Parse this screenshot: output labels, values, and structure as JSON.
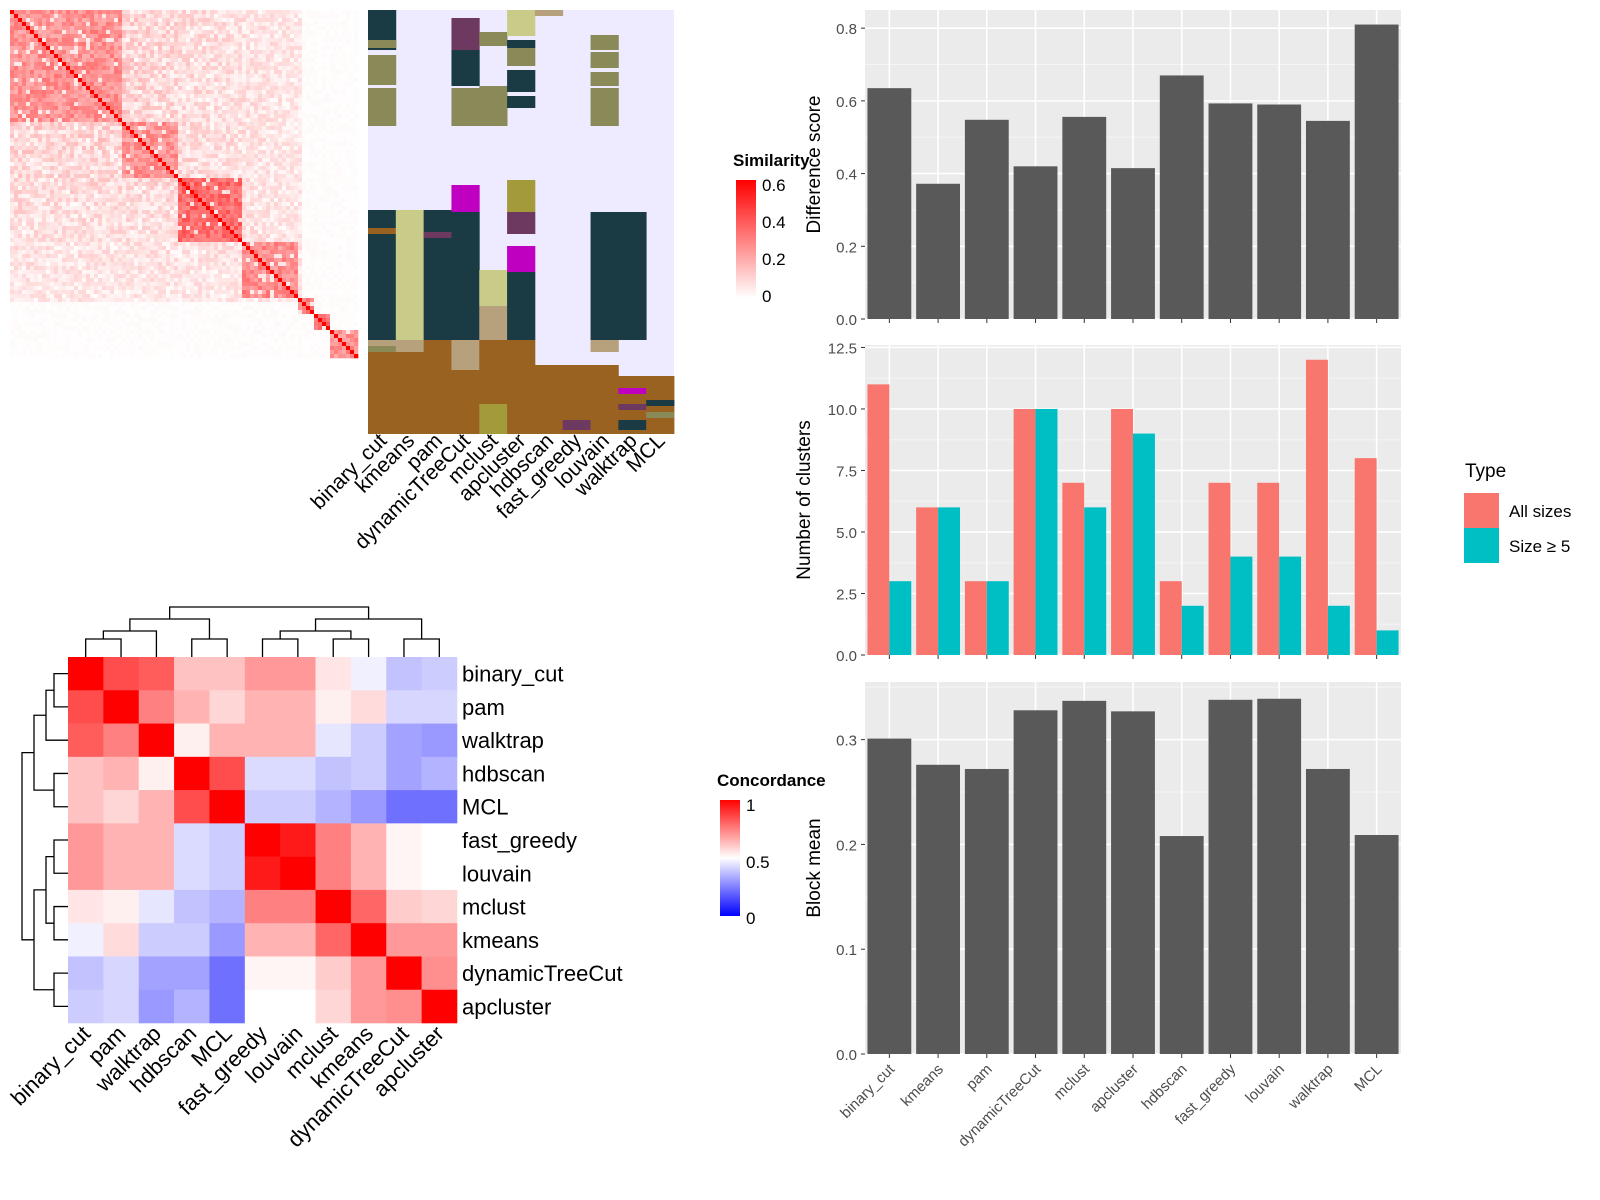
{
  "methods": [
    "binary_cut",
    "kmeans",
    "pam",
    "dynamicTreeCut",
    "mclust",
    "apcluster",
    "hdbscan",
    "fast_greedy",
    "louvain",
    "walktrap",
    "MCL"
  ],
  "colors": {
    "similarity_high": "#ff0000",
    "similarity_low": "#ffffff",
    "concordance_high": "#ff0000",
    "concordance_mid": "#ffffff",
    "concordance_low": "#0000ff",
    "bar_fill": "#595959",
    "panel_bg": "#ebebeb",
    "grid": "#ffffff",
    "all_sizes": "#f8766d",
    "size_ge5": "#00bfc4"
  },
  "similarity_legend": {
    "title": "Similarity",
    "ticks": [
      "0.6",
      "0.4",
      "0.2",
      "0"
    ]
  },
  "concordance_legend": {
    "title": "Concordance",
    "ticks": [
      "1",
      "0.5",
      "0"
    ]
  },
  "chart_data": [
    {
      "type": "heatmap",
      "title": "",
      "description_name": "similarity-matrix",
      "note": "term-by-term similarity heatmap with cluster assignment annotation columns",
      "columns": [
        "binary_cut",
        "kmeans",
        "pam",
        "dynamicTreeCut",
        "mclust",
        "apcluster",
        "hdbscan",
        "fast_greedy",
        "louvain",
        "walktrap",
        "MCL"
      ],
      "legend_title": "Similarity",
      "value_range": [
        0,
        0.6
      ]
    },
    {
      "type": "heatmap",
      "title": "",
      "rows": [
        "binary_cut",
        "pam",
        "walktrap",
        "hdbscan",
        "MCL",
        "fast_greedy",
        "louvain",
        "mclust",
        "kmeans",
        "dynamicTreeCut",
        "apcluster"
      ],
      "cols": [
        "binary_cut",
        "pam",
        "walktrap",
        "hdbscan",
        "MCL",
        "fast_greedy",
        "louvain",
        "mclust",
        "kmeans",
        "dynamicTreeCut",
        "apcluster"
      ],
      "legend_title": "Concordance",
      "value_range": [
        0,
        1
      ],
      "values": [
        [
          1.0,
          0.85,
          0.82,
          0.62,
          0.62,
          0.7,
          0.7,
          0.55,
          0.47,
          0.38,
          0.4
        ],
        [
          0.85,
          1.0,
          0.75,
          0.65,
          0.58,
          0.65,
          0.65,
          0.53,
          0.57,
          0.42,
          0.42
        ],
        [
          0.82,
          0.75,
          1.0,
          0.53,
          0.65,
          0.65,
          0.65,
          0.45,
          0.4,
          0.32,
          0.3
        ],
        [
          0.62,
          0.65,
          0.53,
          1.0,
          0.85,
          0.43,
          0.43,
          0.38,
          0.4,
          0.32,
          0.35
        ],
        [
          0.62,
          0.58,
          0.65,
          0.85,
          1.0,
          0.4,
          0.4,
          0.35,
          0.3,
          0.22,
          0.22
        ],
        [
          0.7,
          0.65,
          0.65,
          0.43,
          0.4,
          1.0,
          0.95,
          0.75,
          0.65,
          0.52,
          0.5
        ],
        [
          0.7,
          0.65,
          0.65,
          0.43,
          0.4,
          0.95,
          1.0,
          0.75,
          0.65,
          0.52,
          0.5
        ],
        [
          0.55,
          0.53,
          0.45,
          0.38,
          0.35,
          0.75,
          0.75,
          1.0,
          0.8,
          0.6,
          0.58
        ],
        [
          0.47,
          0.57,
          0.4,
          0.4,
          0.3,
          0.65,
          0.65,
          0.8,
          1.0,
          0.7,
          0.7
        ],
        [
          0.38,
          0.42,
          0.32,
          0.32,
          0.22,
          0.52,
          0.52,
          0.6,
          0.7,
          1.0,
          0.72
        ],
        [
          0.4,
          0.42,
          0.3,
          0.35,
          0.22,
          0.5,
          0.5,
          0.58,
          0.7,
          0.72,
          1.0
        ]
      ]
    },
    {
      "type": "bar",
      "title": "",
      "categories": [
        "binary_cut",
        "kmeans",
        "pam",
        "dynamicTreeCut",
        "mclust",
        "apcluster",
        "hdbscan",
        "fast_greedy",
        "louvain",
        "walktrap",
        "MCL"
      ],
      "values": [
        0.635,
        0.372,
        0.548,
        0.42,
        0.556,
        0.415,
        0.67,
        0.593,
        0.59,
        0.545,
        0.81
      ],
      "ylabel": "Difference score",
      "ylim": [
        0,
        0.85
      ],
      "yticks": [
        "0.0",
        "0.2",
        "0.4",
        "0.6",
        "0.8"
      ],
      "grid": true
    },
    {
      "type": "bar",
      "title": "",
      "categories": [
        "binary_cut",
        "kmeans",
        "pam",
        "dynamicTreeCut",
        "mclust",
        "apcluster",
        "hdbscan",
        "fast_greedy",
        "louvain",
        "walktrap",
        "MCL"
      ],
      "series": [
        {
          "name": "All sizes",
          "values": [
            11,
            6,
            3,
            10,
            7,
            10,
            3,
            7,
            7,
            12,
            8
          ]
        },
        {
          "name": "Size ≥ 5",
          "values": [
            3,
            6,
            3,
            10,
            6,
            9,
            2,
            4,
            4,
            2,
            1
          ]
        }
      ],
      "ylabel": "Number of clusters",
      "ylim": [
        0,
        12.6
      ],
      "yticks": [
        "0.0",
        "2.5",
        "5.0",
        "7.5",
        "10.0",
        "12.5"
      ],
      "legend_title": "Type",
      "legend_position": "right",
      "grid": true
    },
    {
      "type": "bar",
      "title": "",
      "categories": [
        "binary_cut",
        "kmeans",
        "pam",
        "dynamicTreeCut",
        "mclust",
        "apcluster",
        "hdbscan",
        "fast_greedy",
        "louvain",
        "walktrap",
        "MCL"
      ],
      "values": [
        0.301,
        0.276,
        0.272,
        0.328,
        0.337,
        0.327,
        0.208,
        0.338,
        0.339,
        0.272,
        0.209
      ],
      "ylabel": "Block mean",
      "ylim": [
        0,
        0.355
      ],
      "yticks": [
        "0.0",
        "0.1",
        "0.2",
        "0.3"
      ],
      "grid": true
    }
  ]
}
